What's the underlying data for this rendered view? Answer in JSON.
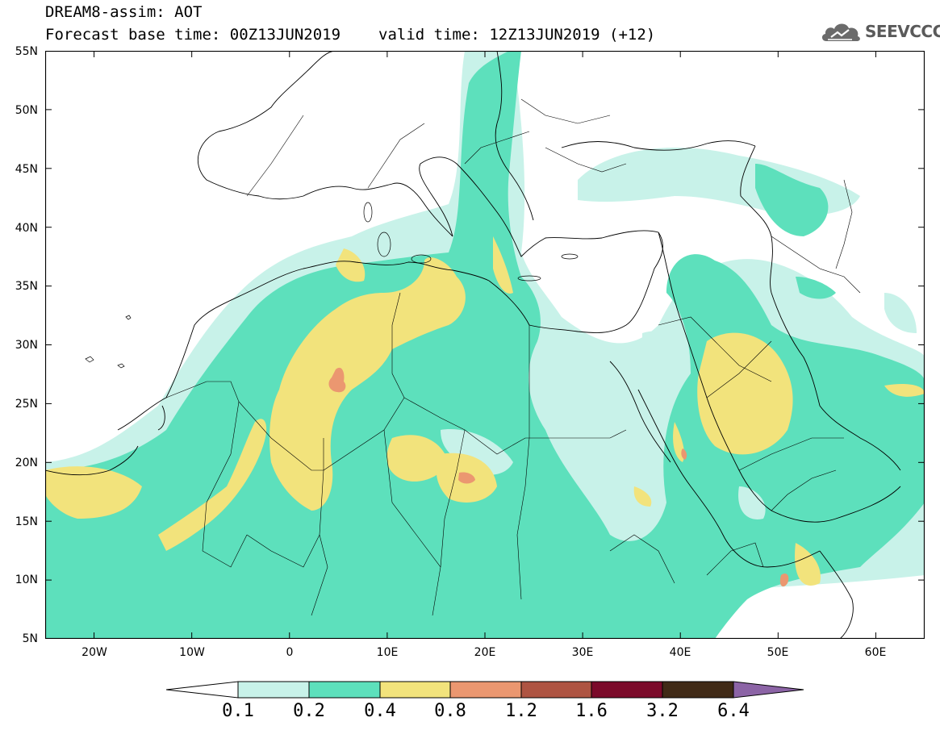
{
  "header": {
    "title_line1": "DREAM8-assim: AOT",
    "base_time": "Forecast base time: 00Z13JUN2019",
    "valid_time": "valid time: 12Z13JUN2019 (+12)"
  },
  "logo": {
    "text": "SEEVCCC",
    "icon": "cloud-logo-icon"
  },
  "map": {
    "lat_labels": [
      "55N",
      "50N",
      "45N",
      "40N",
      "35N",
      "30N",
      "25N",
      "20N",
      "15N",
      "10N",
      "5N"
    ],
    "lon_labels": [
      "20W",
      "10W",
      "0",
      "10E",
      "20E",
      "30E",
      "40E",
      "50E",
      "60E"
    ],
    "extent": {
      "lon": [
        -25,
        65
      ],
      "lat": [
        5,
        55
      ]
    },
    "field": "AOT"
  },
  "colorbar": {
    "levels": [
      "0.1",
      "0.2",
      "0.4",
      "0.8",
      "1.2",
      "1.6",
      "3.2",
      "6.4"
    ],
    "colors": [
      "#ffffff",
      "#c8f2e9",
      "#5de0bc",
      "#f2e37c",
      "#eb9770",
      "#ae5442",
      "#7b0a2a",
      "#402a16",
      "#8c64a6"
    ]
  }
}
